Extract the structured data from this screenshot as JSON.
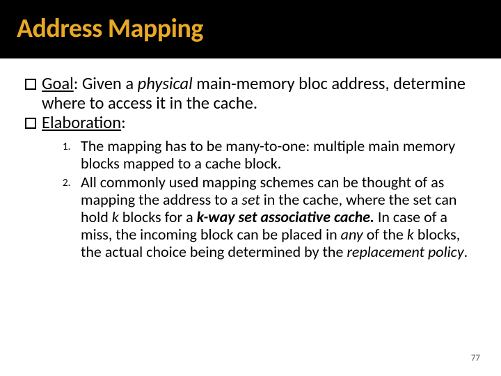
{
  "title": "Address Mapping",
  "colors": {
    "title_bg": "#000000",
    "title_fg": "#e9a825",
    "body_fg": "#000000",
    "page_bg": "#ffffff",
    "page_num_fg": "#606060"
  },
  "bullets": {
    "goal": {
      "label": "Goal",
      "pre": ": Given a ",
      "emph1": "physical",
      "rest": " main-memory bloc address, determine where to access it in the cache."
    },
    "elab": {
      "label": "Elaboration",
      "suffix": ":"
    }
  },
  "list": {
    "n1": "1.",
    "n2": "2.",
    "item1": "The mapping has to be many-to-one: multiple main memory blocks mapped to a cache block.",
    "item2": {
      "p1": "All commonly used mapping schemes can be thought of as mapping the address to a ",
      "set": "set",
      "p2": " in the cache, where the set can hold ",
      "k1": "k",
      "p3": " blocks for a ",
      "kway": "k-way set associative cache.",
      "p4": " In case of a miss, the incoming block can be placed in ",
      "any": "any",
      "p5": " of the ",
      "k2": "k",
      "p6": " blocks, the actual choice being determined by the ",
      "rep": "replacement policy",
      "p7": "."
    }
  },
  "page_number": "77"
}
